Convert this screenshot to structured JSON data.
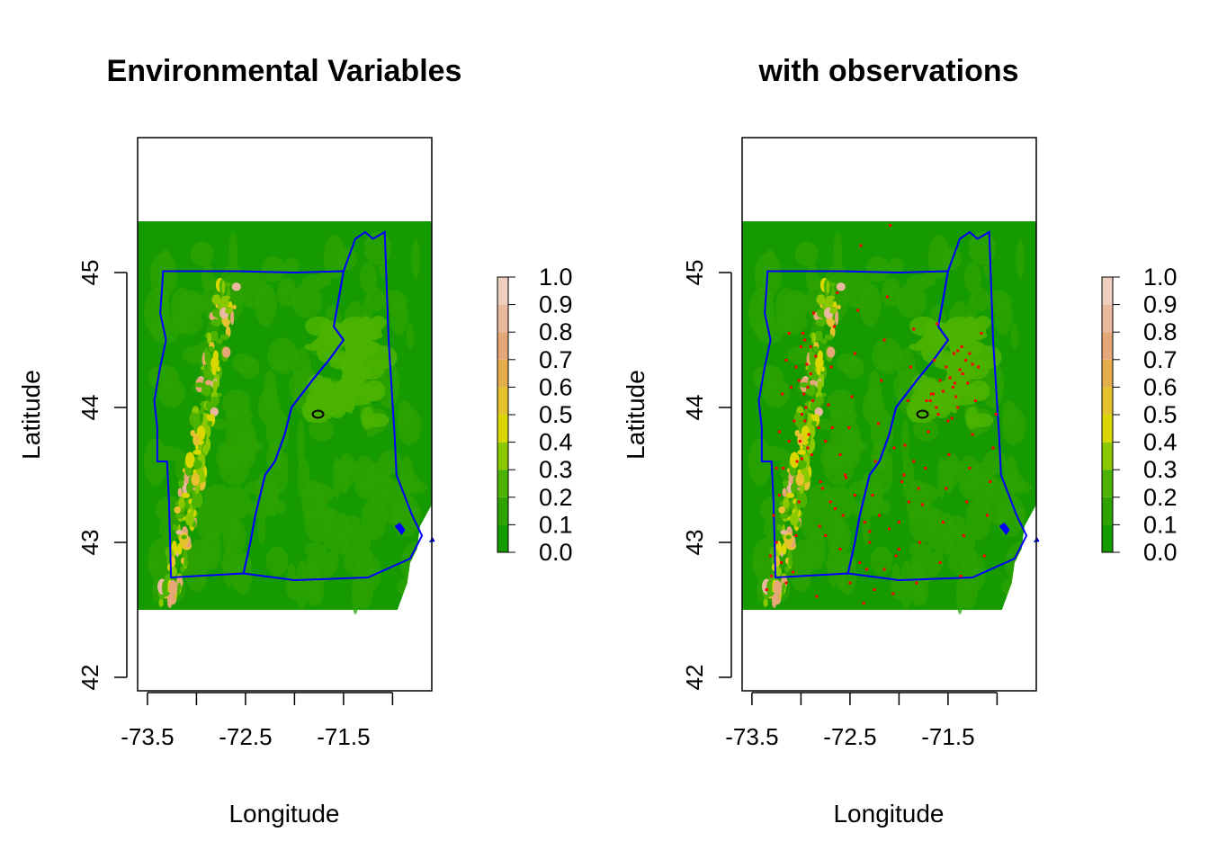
{
  "panels": [
    {
      "title": "Environmental Variables",
      "xlabel": "Longitude",
      "ylabel": "Latitude",
      "show_observations": false
    },
    {
      "title": "with observations",
      "xlabel": "Longitude",
      "ylabel": "Latitude",
      "show_observations": true
    }
  ],
  "axes": {
    "xlim": [
      -73.6,
      -70.6
    ],
    "ylim": [
      41.9,
      46.0
    ],
    "x_ticks": [
      -73.5,
      -73.0,
      -72.5,
      -72.0,
      -71.5,
      -71.0
    ],
    "x_tick_labels": [
      "-73.5",
      "",
      "-72.5",
      "",
      "-71.5",
      ""
    ],
    "y_ticks": [
      42,
      43,
      44,
      45
    ],
    "y_tick_labels": [
      "42",
      "43",
      "44",
      "45"
    ]
  },
  "raster_extent": {
    "lon": [
      -73.6,
      -70.6
    ],
    "lat": [
      42.5,
      45.38
    ]
  },
  "legend": {
    "breaks": [
      0.0,
      0.1,
      0.2,
      0.3,
      0.4,
      0.5,
      0.6,
      0.7,
      0.8,
      0.9,
      1.0
    ],
    "labels": [
      "0.0",
      "0.1",
      "0.2",
      "0.3",
      "0.4",
      "0.5",
      "0.6",
      "0.7",
      "0.8",
      "0.9",
      "1.0"
    ],
    "colors": [
      "#159a00",
      "#2ea300",
      "#4cb400",
      "#8ac800",
      "#d8d800",
      "#e6c22e",
      "#e3ad4a",
      "#e5a777",
      "#eab89e",
      "#efcfc2"
    ]
  },
  "colors": {
    "state_border": "#0000ff",
    "lake_outline": "#000000",
    "observation_points": "#ff0000",
    "ocean": "#ffffff",
    "frame": "#000000"
  },
  "state_boundaries": {
    "vermont": [
      [
        -73.34,
        45.01
      ],
      [
        -72.6,
        45.01
      ],
      [
        -72.0,
        45.0
      ],
      [
        -71.5,
        45.01
      ],
      [
        -71.55,
        44.8
      ],
      [
        -71.6,
        44.6
      ],
      [
        -71.5,
        44.5
      ],
      [
        -71.65,
        44.35
      ],
      [
        -71.82,
        44.2
      ],
      [
        -72.03,
        44.0
      ],
      [
        -72.1,
        43.8
      ],
      [
        -72.2,
        43.6
      ],
      [
        -72.3,
        43.5
      ],
      [
        -72.4,
        43.2
      ],
      [
        -72.45,
        43.0
      ],
      [
        -72.52,
        42.77
      ],
      [
        -73.26,
        42.74
      ],
      [
        -73.28,
        43.3
      ],
      [
        -73.3,
        43.6
      ],
      [
        -73.4,
        43.6
      ],
      [
        -73.4,
        43.85
      ],
      [
        -73.43,
        44.05
      ],
      [
        -73.37,
        44.3
      ],
      [
        -73.31,
        44.5
      ],
      [
        -73.37,
        44.7
      ],
      [
        -73.35,
        44.9
      ],
      [
        -73.34,
        45.01
      ]
    ],
    "new_hampshire": [
      [
        -71.5,
        45.01
      ],
      [
        -71.38,
        45.25
      ],
      [
        -71.28,
        45.3
      ],
      [
        -71.2,
        45.25
      ],
      [
        -71.08,
        45.3
      ],
      [
        -71.04,
        44.5
      ],
      [
        -70.98,
        43.8
      ],
      [
        -70.96,
        43.5
      ],
      [
        -70.8,
        43.2
      ],
      [
        -70.7,
        43.05
      ],
      [
        -70.82,
        42.88
      ],
      [
        -71.25,
        42.74
      ],
      [
        -72.0,
        42.72
      ],
      [
        -72.52,
        42.77
      ],
      [
        -72.45,
        43.0
      ],
      [
        -72.4,
        43.2
      ],
      [
        -72.3,
        43.5
      ],
      [
        -72.2,
        43.6
      ],
      [
        -72.1,
        43.8
      ],
      [
        -72.03,
        44.0
      ],
      [
        -71.82,
        44.2
      ],
      [
        -71.65,
        44.35
      ],
      [
        -71.5,
        44.5
      ],
      [
        -71.6,
        44.6
      ],
      [
        -71.55,
        44.8
      ],
      [
        -71.5,
        45.01
      ]
    ]
  },
  "lake": {
    "center": [
      -71.76,
      43.95
    ]
  },
  "observations": {
    "lon": [
      -73.35,
      -73.31,
      -73.28,
      -73.25,
      -73.22,
      -73.19,
      -73.15,
      -73.12,
      -73.08,
      -73.05,
      -73.02,
      -72.99,
      -72.96,
      -72.93,
      -72.9,
      -72.87,
      -72.84,
      -72.81,
      -72.78,
      -72.75,
      -72.72,
      -72.69,
      -72.66,
      -72.63,
      -72.6,
      -72.57,
      -72.54,
      -72.51,
      -72.48,
      -72.45,
      -72.42,
      -72.39,
      -72.36,
      -72.33,
      -72.3,
      -72.27,
      -72.24,
      -72.21,
      -72.18,
      -72.15,
      -72.12,
      -72.09,
      -72.06,
      -72.03,
      -72.0,
      -71.97,
      -71.94,
      -71.91,
      -71.88,
      -71.85,
      -71.82,
      -71.79,
      -71.76,
      -71.73,
      -71.7,
      -71.67,
      -71.64,
      -71.61,
      -71.58,
      -71.55,
      -71.52,
      -71.49,
      -71.46,
      -71.43,
      -71.4,
      -71.37,
      -71.34,
      -71.31,
      -71.28,
      -71.25,
      -71.22,
      -71.19,
      -71.16,
      -71.13,
      -71.1,
      -71.07,
      -71.04,
      -71.01,
      -73.05,
      -73.0,
      -72.98,
      -73.02,
      -72.95,
      -72.92,
      -73.04,
      -72.97,
      -73.07,
      -72.93,
      -72.85,
      -72.9,
      -72.88,
      -72.82,
      -72.96,
      -73.1,
      -72.99,
      -73.01,
      -72.94,
      -72.89,
      -71.72,
      -71.65,
      -71.58,
      -71.52,
      -71.45,
      -71.4,
      -71.35,
      -71.32,
      -71.28,
      -71.6,
      -71.55,
      -71.48,
      -71.42,
      -71.38,
      -71.3,
      -71.25,
      -71.5,
      -71.62,
      -71.68,
      -71.44,
      -71.36,
      -72.05,
      -71.95,
      -71.9,
      -72.2,
      -72.3,
      -72.4,
      -72.5,
      -72.1,
      -71.8,
      -71.85,
      -72.0,
      -72.15,
      -72.25,
      -72.35,
      -72.45,
      -72.55,
      -72.65,
      -72.75,
      -73.15,
      -73.2,
      -73.25,
      -73.3,
      -72.8,
      -72.7,
      -73.12,
      -73.18,
      -73.22,
      -72.6,
      -72.68
    ],
    "lat": [
      42.65,
      42.9,
      43.2,
      43.55,
      43.82,
      44.1,
      44.35,
      44.55,
      42.78,
      43.05,
      43.3,
      43.62,
      43.9,
      44.15,
      44.45,
      44.7,
      42.6,
      43.12,
      43.4,
      43.75,
      44.02,
      44.3,
      44.6,
      44.85,
      42.95,
      43.2,
      43.48,
      43.85,
      44.08,
      44.4,
      44.72,
      45.2,
      42.55,
      42.8,
      43.08,
      43.35,
      43.6,
      43.88,
      44.2,
      44.5,
      44.82,
      45.35,
      42.62,
      42.9,
      43.15,
      43.45,
      43.72,
      44.05,
      44.3,
      44.58,
      42.7,
      43.0,
      43.28,
      43.55,
      43.82,
      44.1,
      44.35,
      44.62,
      42.85,
      43.15,
      43.4,
      43.65,
      43.92,
      44.18,
      44.42,
      42.75,
      43.05,
      43.3,
      43.55,
      43.8,
      44.05,
      44.3,
      44.55,
      42.9,
      43.2,
      43.45,
      43.7,
      43.95,
      44.3,
      44.45,
      44.55,
      44.2,
      44.0,
      43.8,
      43.6,
      44.1,
      43.9,
      43.7,
      44.38,
      44.25,
      44.05,
      43.85,
      44.5,
      44.15,
      43.95,
      43.75,
      44.32,
      43.65,
      44.05,
      44.1,
      44.2,
      44.3,
      44.15,
      44.0,
      44.25,
      44.35,
      44.4,
      43.95,
      44.12,
      44.22,
      44.08,
      44.28,
      44.18,
      44.32,
      43.9,
      44.0,
      44.05,
      44.4,
      44.45,
      43.7,
      43.5,
      43.3,
      43.2,
      43.0,
      42.85,
      42.7,
      43.1,
      43.4,
      43.6,
      42.95,
      42.8,
      42.65,
      43.15,
      43.35,
      43.5,
      43.25,
      43.05,
      42.7,
      42.85,
      43.0,
      42.75,
      43.45,
      43.3,
      43.75,
      43.55,
      43.35,
      43.65,
      43.85
    ]
  }
}
